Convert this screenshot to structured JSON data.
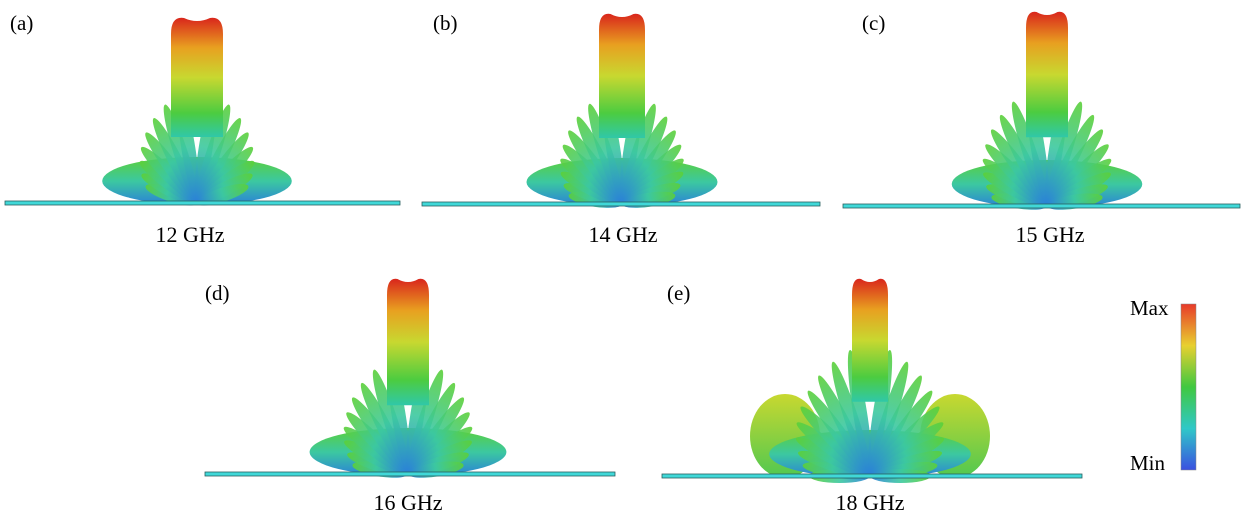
{
  "panels": [
    {
      "label": "(a)",
      "caption": "12 GHz"
    },
    {
      "label": "(b)",
      "caption": "14 GHz"
    },
    {
      "label": "(c)",
      "caption": "15 GHz"
    },
    {
      "label": "(d)",
      "caption": "16 GHz"
    },
    {
      "label": "(e)",
      "caption": "18 GHz"
    }
  ],
  "colorbar": {
    "max": "Max",
    "min": "Min"
  }
}
